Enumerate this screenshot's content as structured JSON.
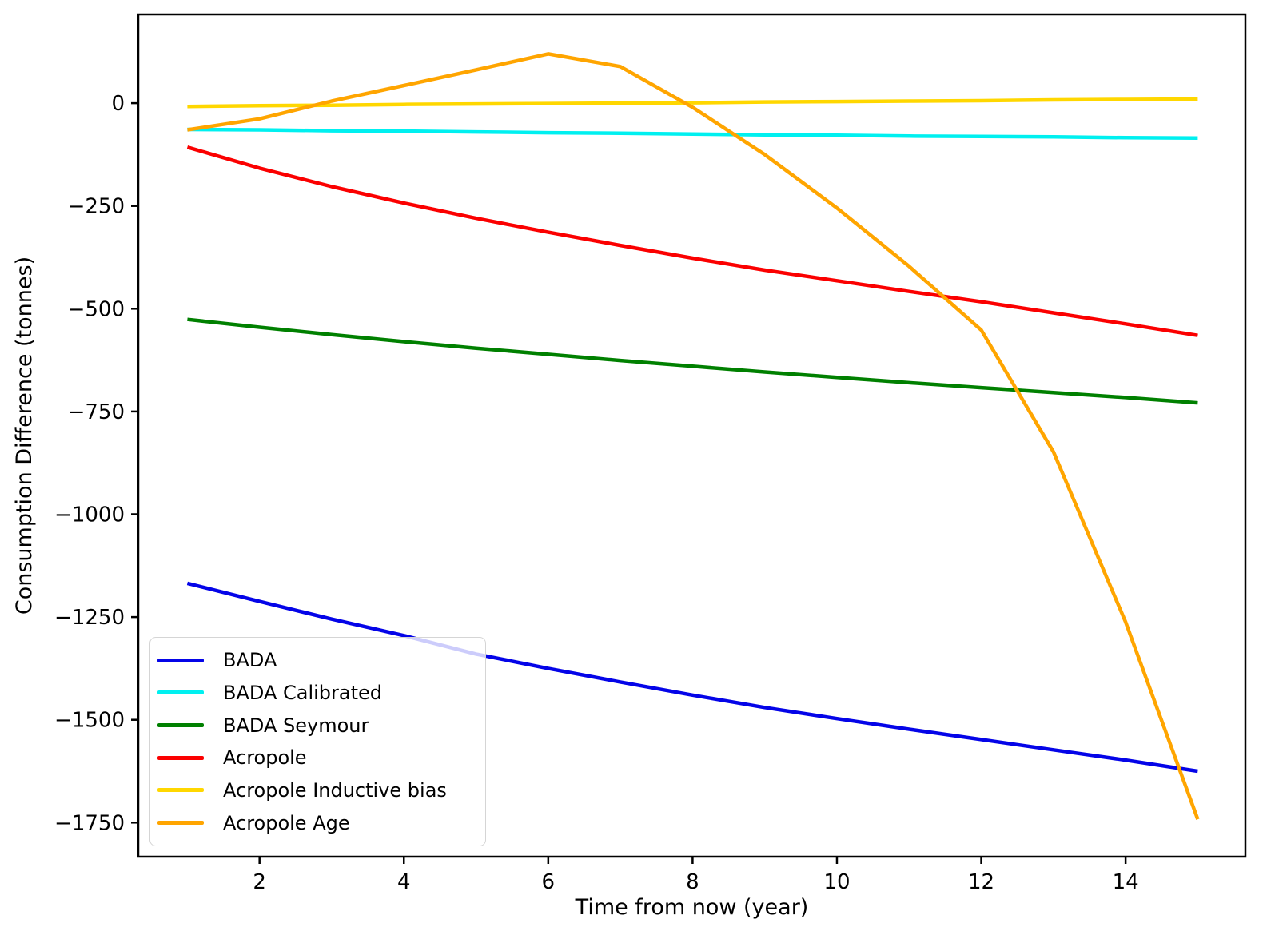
{
  "figure": {
    "background": "#ffffff"
  },
  "chart_data": {
    "type": "line",
    "title": "",
    "xlabel": "Time from now (year)",
    "ylabel": "Consumption Difference (tonnes)",
    "grid": false,
    "legend_position": "lower-left",
    "x_ticks": [
      2,
      4,
      6,
      8,
      10,
      12,
      14
    ],
    "y_ticks": [
      0,
      -250,
      -500,
      -750,
      -1000,
      -1250,
      -1500,
      -1750
    ],
    "x_range": [
      0.32,
      15.66
    ],
    "y_range": [
      -1833,
      216
    ],
    "x": [
      1,
      2,
      3,
      4,
      5,
      6,
      7,
      8,
      9,
      10,
      11,
      12,
      13,
      14,
      15
    ],
    "series": [
      {
        "name": "BADA",
        "color": "#0404e8",
        "values": [
          -1168,
          -1212,
          -1255,
          -1295,
          -1340,
          -1375,
          -1408,
          -1440,
          -1470,
          -1497,
          -1523,
          -1548,
          -1573,
          -1598,
          -1625
        ]
      },
      {
        "name": "BADA Calibrated",
        "color": "#00f0f0",
        "values": [
          -64,
          -65,
          -67,
          -68,
          -70,
          -72,
          -73,
          -75,
          -77,
          -78,
          -80,
          -81,
          -82,
          -84,
          -85
        ]
      },
      {
        "name": "BADA Seymour",
        "color": "#008000",
        "values": [
          -526,
          -545,
          -563,
          -580,
          -596,
          -611,
          -626,
          -640,
          -654,
          -667,
          -680,
          -692,
          -704,
          -716,
          -729
        ]
      },
      {
        "name": "Acropole",
        "color": "#fb0000",
        "values": [
          -107,
          -158,
          -203,
          -243,
          -280,
          -314,
          -346,
          -377,
          -406,
          -432,
          -458,
          -483,
          -510,
          -537,
          -565
        ]
      },
      {
        "name": "Acropole Inductive bias",
        "color": "#ffd700",
        "values": [
          -8,
          -6,
          -5,
          -3,
          -2,
          -1,
          0,
          1,
          3,
          4,
          5,
          6,
          8,
          9,
          10
        ]
      },
      {
        "name": "Acropole Age",
        "color": "#ffa500",
        "values": [
          -65,
          -38,
          5,
          43,
          81,
          120,
          89,
          -10,
          -125,
          -255,
          -397,
          -552,
          -848,
          -1262,
          -1742
        ]
      }
    ]
  }
}
